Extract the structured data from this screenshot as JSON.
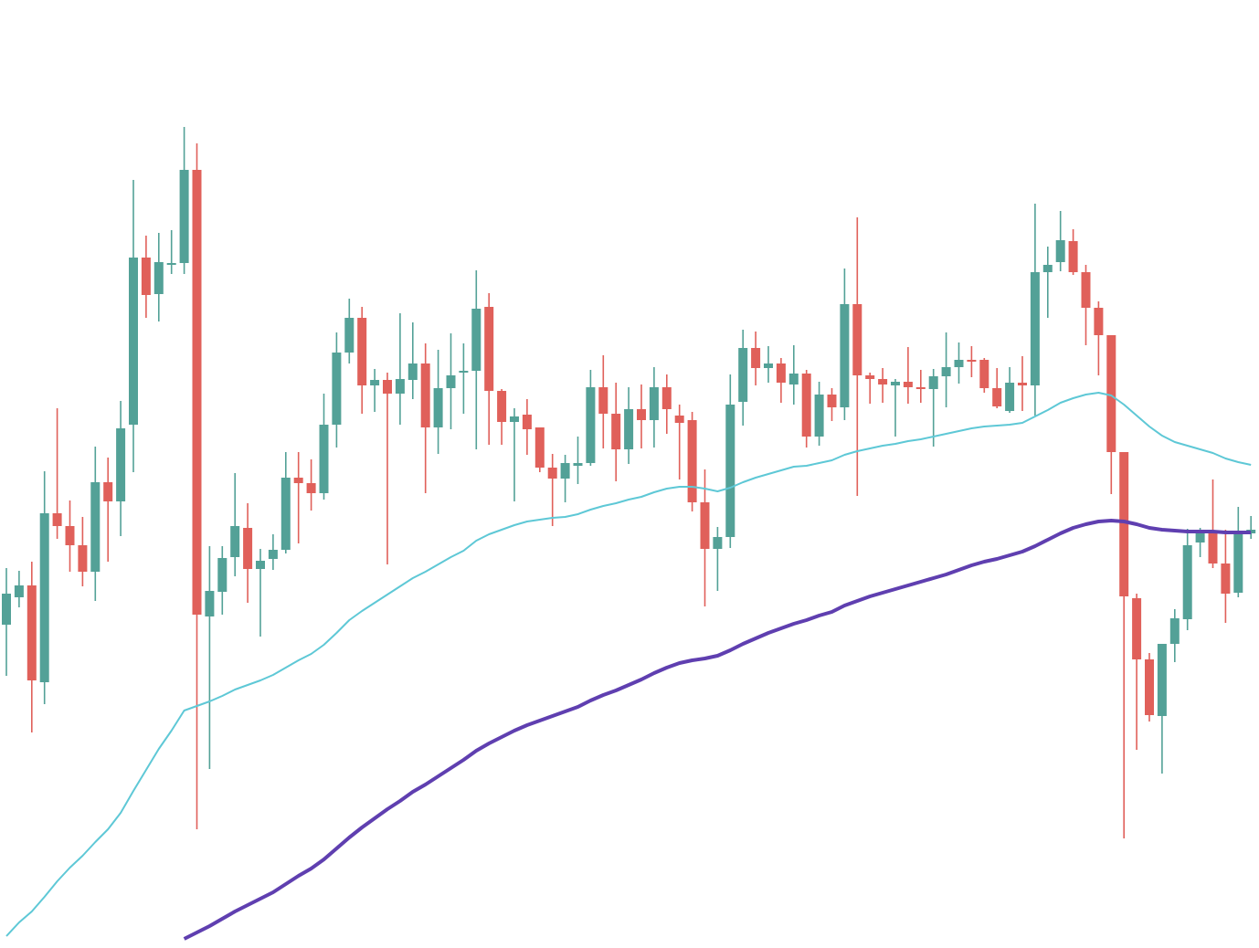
{
  "chart_data": {
    "type": "candlestick",
    "up_color": "#53a197",
    "down_color": "#e0605a",
    "ylim": [
      0,
      1038
    ],
    "open": [
      354,
      384,
      397,
      291,
      476,
      462,
      441,
      412,
      510,
      489,
      573,
      756,
      716,
      748,
      750,
      852,
      363,
      390,
      428,
      460,
      415,
      426,
      436,
      515,
      509,
      498,
      573,
      652,
      690,
      616,
      622,
      607,
      622,
      640,
      570,
      613,
      630,
      632,
      702,
      610,
      576,
      584,
      570,
      526,
      514,
      528,
      531,
      614,
      585,
      546,
      590,
      578,
      614,
      583,
      578,
      488,
      437,
      450,
      598,
      657,
      635,
      640,
      617,
      629,
      560,
      606,
      592,
      705,
      627,
      623,
      616,
      620,
      614,
      612,
      626,
      636,
      644,
      644,
      613,
      588,
      619,
      616,
      740,
      751,
      774,
      740,
      701,
      671,
      543,
      383,
      316,
      254,
      333,
      360,
      444,
      454,
      421,
      389,
      454
    ],
    "high": [
      416,
      413,
      423,
      522,
      591,
      490,
      472,
      549,
      537,
      599,
      841,
      780,
      783,
      786,
      899,
      881,
      440,
      440,
      520,
      487,
      437,
      453,
      543,
      543,
      535,
      607,
      674,
      711,
      702,
      634,
      630,
      695,
      685,
      662,
      655,
      673,
      662,
      742,
      717,
      612,
      591,
      601,
      570,
      541,
      540,
      560,
      633,
      649,
      619,
      614,
      617,
      636,
      628,
      595,
      587,
      524,
      461,
      628,
      677,
      675,
      659,
      646,
      660,
      633,
      620,
      613,
      744,
      800,
      630,
      635,
      623,
      658,
      633,
      634,
      674,
      663,
      659,
      646,
      635,
      636,
      648,
      815,
      768,
      807,
      787,
      748,
      708,
      671,
      543,
      388,
      323,
      333,
      371,
      459,
      460,
      513,
      458,
      483,
      473
    ],
    "low": [
      298,
      373,
      236,
      267,
      448,
      412,
      396,
      380,
      423,
      451,
      521,
      690,
      686,
      738,
      738,
      130,
      196,
      365,
      407,
      378,
      341,
      414,
      432,
      443,
      479,
      491,
      548,
      640,
      585,
      587,
      420,
      573,
      601,
      498,
      541,
      568,
      585,
      546,
      551,
      551,
      489,
      540,
      521,
      462,
      488,
      508,
      528,
      547,
      511,
      530,
      547,
      548,
      563,
      513,
      478,
      374,
      391,
      438,
      572,
      616,
      619,
      597,
      595,
      548,
      550,
      577,
      578,
      495,
      596,
      597,
      560,
      596,
      597,
      549,
      592,
      618,
      625,
      608,
      591,
      586,
      588,
      583,
      690,
      741,
      737,
      660,
      627,
      497,
      120,
      217,
      248,
      191,
      313,
      348,
      428,
      416,
      356,
      384,
      448
    ],
    "close": [
      388,
      397,
      293,
      476,
      462,
      441,
      412,
      510,
      489,
      569,
      756,
      715,
      751,
      750,
      852,
      365,
      391,
      427,
      462,
      415,
      424,
      436,
      515,
      509,
      498,
      573,
      652,
      690,
      616,
      622,
      607,
      623,
      640,
      570,
      613,
      627,
      632,
      700,
      610,
      576,
      582,
      568,
      526,
      514,
      531,
      531,
      614,
      585,
      546,
      590,
      578,
      614,
      590,
      575,
      488,
      437,
      450,
      595,
      657,
      635,
      640,
      619,
      629,
      560,
      606,
      592,
      705,
      627,
      623,
      617,
      620,
      614,
      612,
      626,
      636,
      644,
      642,
      613,
      593,
      619,
      616,
      740,
      748,
      775,
      740,
      701,
      671,
      543,
      385,
      316,
      255,
      333,
      361,
      441,
      454,
      421,
      388,
      456,
      458
    ],
    "lines": [
      {
        "color": "#5ec8d6",
        "values": [
          13,
          28,
          40,
          56,
          73,
          88,
          101,
          116,
          130,
          148,
          172,
          195,
          218,
          238,
          260,
          265,
          270,
          276,
          283,
          288,
          293,
          299,
          307,
          315,
          322,
          332,
          345,
          359,
          369,
          378,
          387,
          396,
          405,
          412,
          420,
          428,
          435,
          446,
          453,
          458,
          463,
          467,
          469,
          471,
          472,
          475,
          480,
          484,
          487,
          491,
          494,
          499,
          503,
          505,
          505,
          503,
          500,
          504,
          510,
          515,
          519,
          523,
          527,
          528,
          531,
          534,
          540,
          544,
          547,
          550,
          552,
          555,
          557,
          560,
          563,
          566,
          569,
          571,
          572,
          573,
          575,
          582,
          589,
          597,
          602,
          606,
          608,
          605,
          595,
          583,
          571,
          561,
          554,
          550,
          546,
          542,
          536,
          532,
          529
        ]
      },
      {
        "color": "#5f3fb0",
        "values": [
          null,
          null,
          null,
          null,
          null,
          null,
          null,
          null,
          null,
          null,
          null,
          null,
          null,
          null,
          10,
          17,
          24,
          32,
          40,
          47,
          54,
          61,
          70,
          79,
          87,
          97,
          109,
          121,
          132,
          142,
          152,
          161,
          171,
          179,
          188,
          197,
          206,
          216,
          224,
          231,
          238,
          244,
          249,
          254,
          259,
          264,
          271,
          277,
          282,
          288,
          294,
          301,
          307,
          312,
          315,
          317,
          320,
          326,
          333,
          339,
          345,
          350,
          355,
          359,
          364,
          368,
          375,
          380,
          385,
          389,
          393,
          397,
          401,
          405,
          409,
          414,
          419,
          423,
          426,
          430,
          434,
          440,
          447,
          454,
          460,
          464,
          467,
          468,
          467,
          464,
          460,
          458,
          457,
          456,
          456,
          456,
          455,
          455,
          455
        ]
      }
    ]
  }
}
